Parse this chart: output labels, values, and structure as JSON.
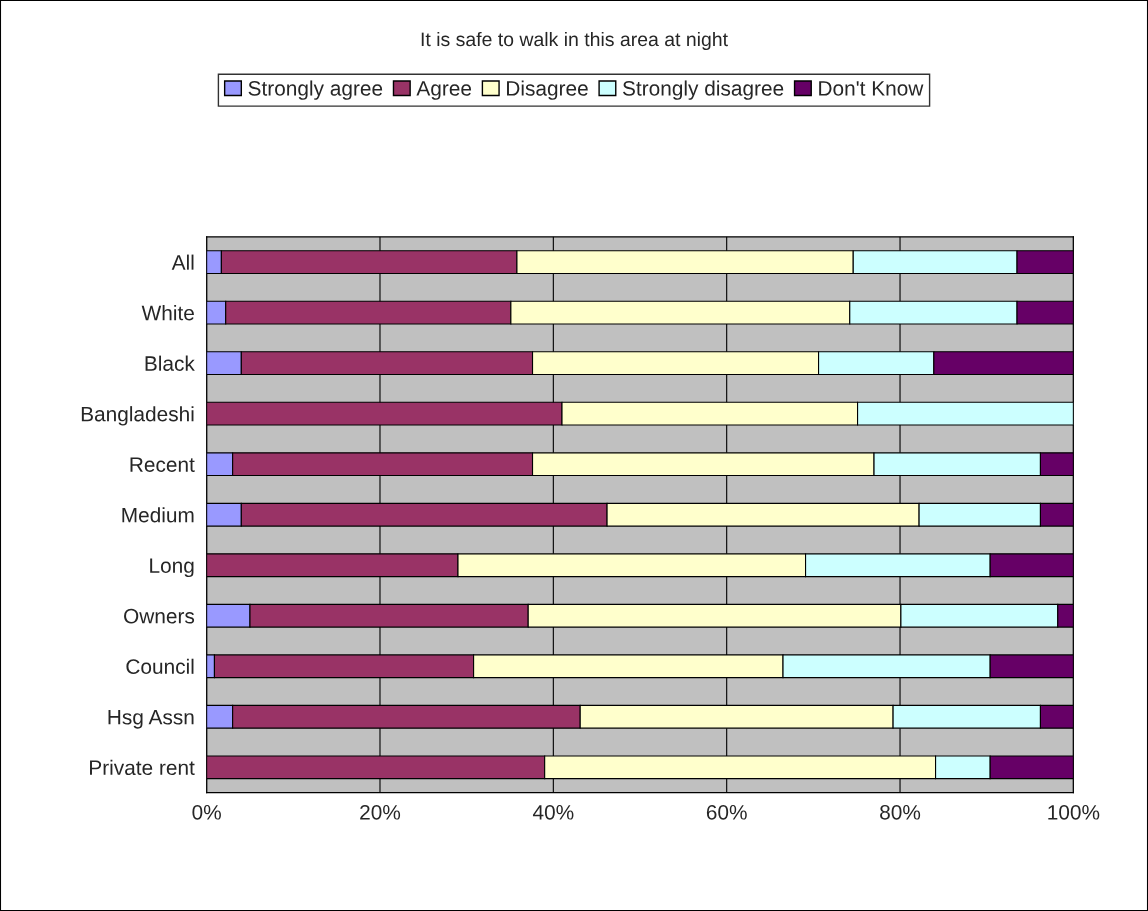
{
  "chart_data": {
    "type": "bar",
    "orientation": "horizontal",
    "stacked": true,
    "title": "It is safe to walk in this area at night",
    "categories": [
      "All",
      "White",
      "Black",
      "Bangladeshi",
      "Recent",
      "Medium",
      "Long",
      "Owners",
      "Council",
      "Hsg Assn",
      "Private rent"
    ],
    "series": [
      {
        "name": "Strongly agree",
        "color": "#9999ff",
        "values": [
          1.7,
          2.2,
          4.0,
          0,
          3.0,
          4.0,
          0,
          5.0,
          0.9,
          3.0,
          0
        ]
      },
      {
        "name": "Agree",
        "color": "#993366",
        "values": [
          34.1,
          32.9,
          33.6,
          41.0,
          34.6,
          42.2,
          29.0,
          32.1,
          29.9,
          40.1,
          39.0
        ]
      },
      {
        "name": "Disagree",
        "color": "#ffffcc",
        "values": [
          38.8,
          39.1,
          33.0,
          34.1,
          39.4,
          36.0,
          40.1,
          43.0,
          35.7,
          36.1,
          45.1
        ]
      },
      {
        "name": "Strongly disagree",
        "color": "#ccffff",
        "values": [
          18.9,
          19.3,
          13.3,
          24.9,
          19.2,
          14.0,
          21.3,
          18.1,
          23.9,
          17.0,
          6.3
        ]
      },
      {
        "name": "Don't Know",
        "color": "#660066",
        "values": [
          6.5,
          6.5,
          16.1,
          0,
          3.8,
          3.8,
          9.6,
          1.8,
          9.6,
          3.8,
          9.6
        ]
      }
    ],
    "xlim": [
      0,
      100
    ],
    "xticks": [
      {
        "value": 0,
        "label": "0%"
      },
      {
        "value": 20,
        "label": "20%"
      },
      {
        "value": 40,
        "label": "40%"
      },
      {
        "value": 60,
        "label": "60%"
      },
      {
        "value": 80,
        "label": "80%"
      },
      {
        "value": 100,
        "label": "100%"
      }
    ],
    "grid": "x",
    "legend": "top"
  }
}
